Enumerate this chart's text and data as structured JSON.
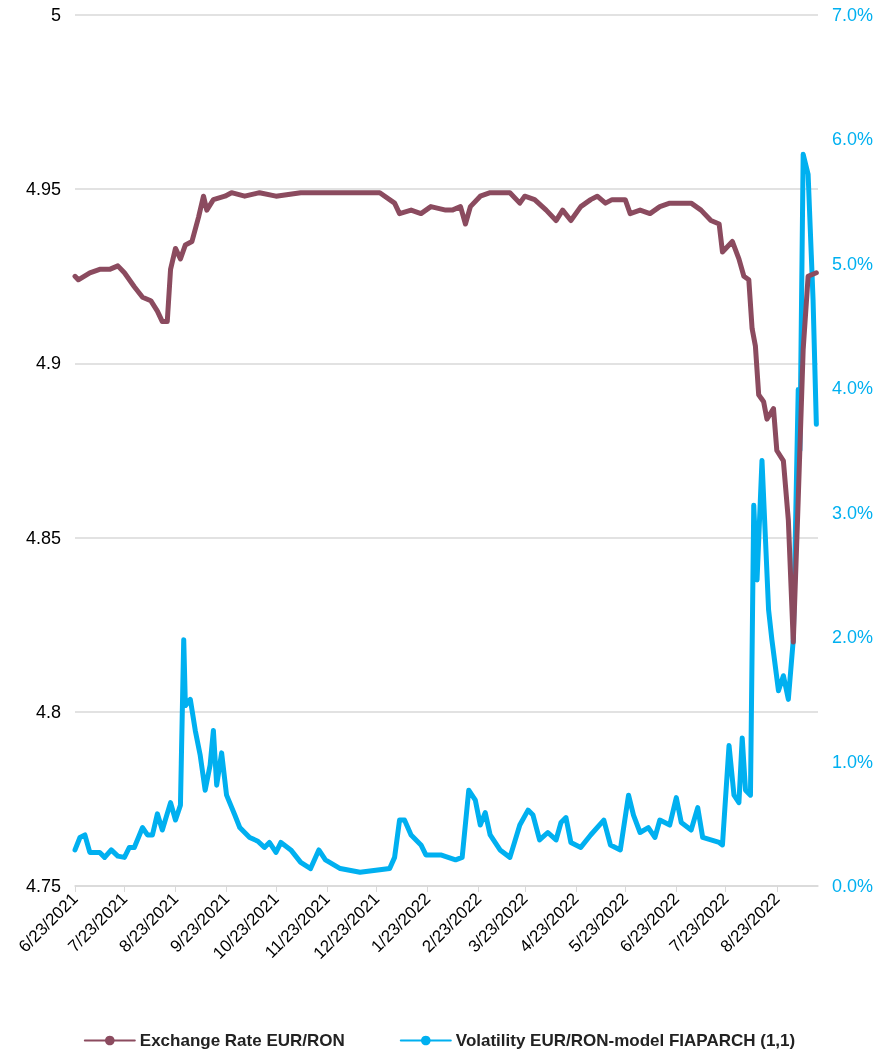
{
  "chart_data": {
    "type": "line",
    "xlim": [
      "2021-06-23",
      "2022-09-17"
    ],
    "xticks": [
      {
        "value": "2021-06-23",
        "label": "6/23/2021"
      },
      {
        "value": "2021-07-23",
        "label": "7/23/2021"
      },
      {
        "value": "2021-08-23",
        "label": "8/23/2021"
      },
      {
        "value": "2021-09-23",
        "label": "9/23/2021"
      },
      {
        "value": "2021-10-23",
        "label": "10/23/2021"
      },
      {
        "value": "2021-11-23",
        "label": "11/23/2021"
      },
      {
        "value": "2021-12-23",
        "label": "12/23/2021"
      },
      {
        "value": "2022-01-23",
        "label": "1/23/2022"
      },
      {
        "value": "2022-02-23",
        "label": "2/23/2022"
      },
      {
        "value": "2022-03-23",
        "label": "3/23/2022"
      },
      {
        "value": "2022-04-23",
        "label": "4/23/2022"
      },
      {
        "value": "2022-05-23",
        "label": "5/23/2022"
      },
      {
        "value": "2022-06-23",
        "label": "6/23/2022"
      },
      {
        "value": "2022-07-23",
        "label": "7/23/2022"
      },
      {
        "value": "2022-08-23",
        "label": "8/23/2022"
      }
    ],
    "ylim": [
      4.75,
      5
    ],
    "yticks": [
      4.75,
      4.8,
      4.85,
      4.9,
      4.95,
      5
    ],
    "y2lim": [
      0,
      7
    ],
    "y2ticks": [
      {
        "value": 0,
        "label": "0.0%"
      },
      {
        "value": 1,
        "label": "1.0%"
      },
      {
        "value": 2,
        "label": "2.0%"
      },
      {
        "value": 3,
        "label": "3.0%"
      },
      {
        "value": 4,
        "label": "4.0%"
      },
      {
        "value": 5,
        "label": "5.0%"
      },
      {
        "value": 6,
        "label": "6.0%"
      },
      {
        "value": 7,
        "label": "7.0%"
      }
    ],
    "grid": "y",
    "legend": "bottom",
    "marker": "none",
    "line_style": "solid",
    "series": [
      {
        "name": "Exchange Rate EUR/RON",
        "color": "#8b4b5f",
        "x": [
          "2021-06-23",
          "2021-06-25",
          "2021-07-02",
          "2021-07-08",
          "2021-07-14",
          "2021-07-19",
          "2021-07-23",
          "2021-07-29",
          "2021-08-03",
          "2021-08-08",
          "2021-08-12",
          "2021-08-15",
          "2021-08-18",
          "2021-08-20",
          "2021-08-23",
          "2021-08-26",
          "2021-08-29",
          "2021-09-02",
          "2021-09-06",
          "2021-09-09",
          "2021-09-11",
          "2021-09-15",
          "2021-09-22",
          "2021-09-26",
          "2021-10-04",
          "2021-10-13",
          "2021-10-23",
          "2021-11-07",
          "2021-12-01",
          "2021-12-25",
          "2022-01-03",
          "2022-01-06",
          "2022-01-13",
          "2022-01-19",
          "2022-01-25",
          "2022-02-03",
          "2022-02-07",
          "2022-02-12",
          "2022-02-15",
          "2022-02-18",
          "2022-02-24",
          "2022-03-02",
          "2022-03-14",
          "2022-03-20",
          "2022-03-23",
          "2022-03-29",
          "2022-04-05",
          "2022-04-11",
          "2022-04-15",
          "2022-04-20",
          "2022-04-26",
          "2022-05-02",
          "2022-05-06",
          "2022-05-11",
          "2022-05-15",
          "2022-05-23",
          "2022-05-26",
          "2022-06-01",
          "2022-06-07",
          "2022-06-13",
          "2022-06-19",
          "2022-06-26",
          "2022-07-02",
          "2022-07-08",
          "2022-07-14",
          "2022-07-19",
          "2022-07-21",
          "2022-07-27",
          "2022-07-31",
          "2022-08-03",
          "2022-08-06",
          "2022-08-08",
          "2022-08-10",
          "2022-08-12",
          "2022-08-15",
          "2022-08-17",
          "2022-08-21",
          "2022-08-23",
          "2022-08-27",
          "2022-08-30",
          "2022-09-02",
          "2022-09-05",
          "2022-09-08",
          "2022-09-11",
          "2022-09-16"
        ],
        "values": [
          4.925,
          4.924,
          4.926,
          4.927,
          4.927,
          4.928,
          4.926,
          4.922,
          4.919,
          4.918,
          4.915,
          4.912,
          4.912,
          4.927,
          4.933,
          4.93,
          4.934,
          4.935,
          4.942,
          4.948,
          4.944,
          4.947,
          4.948,
          4.949,
          4.948,
          4.949,
          4.948,
          4.949,
          4.949,
          4.949,
          4.946,
          4.943,
          4.944,
          4.943,
          4.945,
          4.944,
          4.944,
          4.945,
          4.94,
          4.945,
          4.948,
          4.949,
          4.949,
          4.946,
          4.948,
          4.947,
          4.944,
          4.941,
          4.944,
          4.941,
          4.945,
          4.947,
          4.948,
          4.946,
          4.947,
          4.947,
          4.943,
          4.944,
          4.943,
          4.945,
          4.946,
          4.946,
          4.946,
          4.944,
          4.941,
          4.94,
          4.932,
          4.935,
          4.93,
          4.925,
          4.924,
          4.91,
          4.905,
          4.891,
          4.889,
          4.884,
          4.887,
          4.875,
          4.872,
          4.855,
          4.82,
          4.861,
          4.904,
          4.925,
          4.926
        ]
      },
      {
        "name": "Volatility EUR/RON-model FIAPARCH (1,1)",
        "color": "#00b0f0",
        "axis": "y2",
        "x": [
          "2021-06-23",
          "2021-06-26",
          "2021-06-29",
          "2021-07-02",
          "2021-07-08",
          "2021-07-11",
          "2021-07-15",
          "2021-07-19",
          "2021-07-23",
          "2021-07-26",
          "2021-07-29",
          "2021-08-03",
          "2021-08-06",
          "2021-08-09",
          "2021-08-12",
          "2021-08-15",
          "2021-08-20",
          "2021-08-23",
          "2021-08-26",
          "2021-08-28",
          "2021-08-29",
          "2021-09-01",
          "2021-09-04",
          "2021-09-07",
          "2021-09-10",
          "2021-09-13",
          "2021-09-15",
          "2021-09-17",
          "2021-09-20",
          "2021-09-23",
          "2021-09-28",
          "2021-10-01",
          "2021-10-07",
          "2021-10-12",
          "2021-10-16",
          "2021-10-19",
          "2021-10-23",
          "2021-10-26",
          "2021-11-01",
          "2021-11-07",
          "2021-11-13",
          "2021-11-18",
          "2021-11-22",
          "2021-12-01",
          "2021-12-13",
          "2021-12-25",
          "2021-12-31",
          "2022-01-03",
          "2022-01-06",
          "2022-01-09",
          "2022-01-13",
          "2022-01-19",
          "2022-01-22",
          "2022-01-31",
          "2022-02-09",
          "2022-02-13",
          "2022-02-17",
          "2022-02-21",
          "2022-02-24",
          "2022-02-27",
          "2022-03-02",
          "2022-03-08",
          "2022-03-14",
          "2022-03-20",
          "2022-03-25",
          "2022-03-28",
          "2022-04-01",
          "2022-04-06",
          "2022-04-11",
          "2022-04-14",
          "2022-04-17",
          "2022-04-20",
          "2022-04-26",
          "2022-05-02",
          "2022-05-10",
          "2022-05-14",
          "2022-05-20",
          "2022-05-25",
          "2022-05-28",
          "2022-06-01",
          "2022-06-06",
          "2022-06-10",
          "2022-06-13",
          "2022-06-19",
          "2022-06-23",
          "2022-06-26",
          "2022-07-02",
          "2022-07-06",
          "2022-07-09",
          "2022-07-14",
          "2022-07-19",
          "2022-07-21",
          "2022-07-25",
          "2022-07-28",
          "2022-07-31",
          "2022-08-02",
          "2022-08-04",
          "2022-08-07",
          "2022-08-09",
          "2022-08-11",
          "2022-08-14",
          "2022-08-18",
          "2022-08-20",
          "2022-08-24",
          "2022-08-27",
          "2022-08-30",
          "2022-09-02",
          "2022-09-05",
          "2022-09-06",
          "2022-09-08",
          "2022-09-11",
          "2022-09-14",
          "2022-09-16"
        ],
        "values": [
          0.29,
          0.39,
          0.41,
          0.27,
          0.27,
          0.23,
          0.29,
          0.24,
          0.23,
          0.31,
          0.31,
          0.47,
          0.41,
          0.41,
          0.58,
          0.45,
          0.67,
          0.53,
          0.65,
          1.98,
          1.45,
          1.5,
          1.25,
          1.05,
          0.77,
          0.97,
          1.25,
          0.81,
          1.07,
          0.73,
          0.57,
          0.47,
          0.39,
          0.36,
          0.31,
          0.35,
          0.27,
          0.35,
          0.29,
          0.19,
          0.14,
          0.29,
          0.21,
          0.14,
          0.11,
          0.13,
          0.14,
          0.23,
          0.53,
          0.53,
          0.41,
          0.33,
          0.25,
          0.25,
          0.21,
          0.23,
          0.77,
          0.69,
          0.49,
          0.59,
          0.41,
          0.29,
          0.23,
          0.49,
          0.61,
          0.57,
          0.37,
          0.43,
          0.37,
          0.51,
          0.55,
          0.35,
          0.31,
          0.41,
          0.53,
          0.33,
          0.29,
          0.73,
          0.57,
          0.43,
          0.47,
          0.39,
          0.53,
          0.49,
          0.71,
          0.51,
          0.45,
          0.63,
          0.39,
          0.37,
          0.35,
          0.33,
          1.13,
          0.73,
          0.67,
          1.19,
          0.77,
          0.73,
          3.06,
          2.46,
          3.42,
          2.22,
          1.98,
          1.57,
          1.69,
          1.5,
          1.98,
          3.99,
          3.5,
          5.88,
          5.72,
          4.71,
          3.71
        ]
      }
    ]
  }
}
